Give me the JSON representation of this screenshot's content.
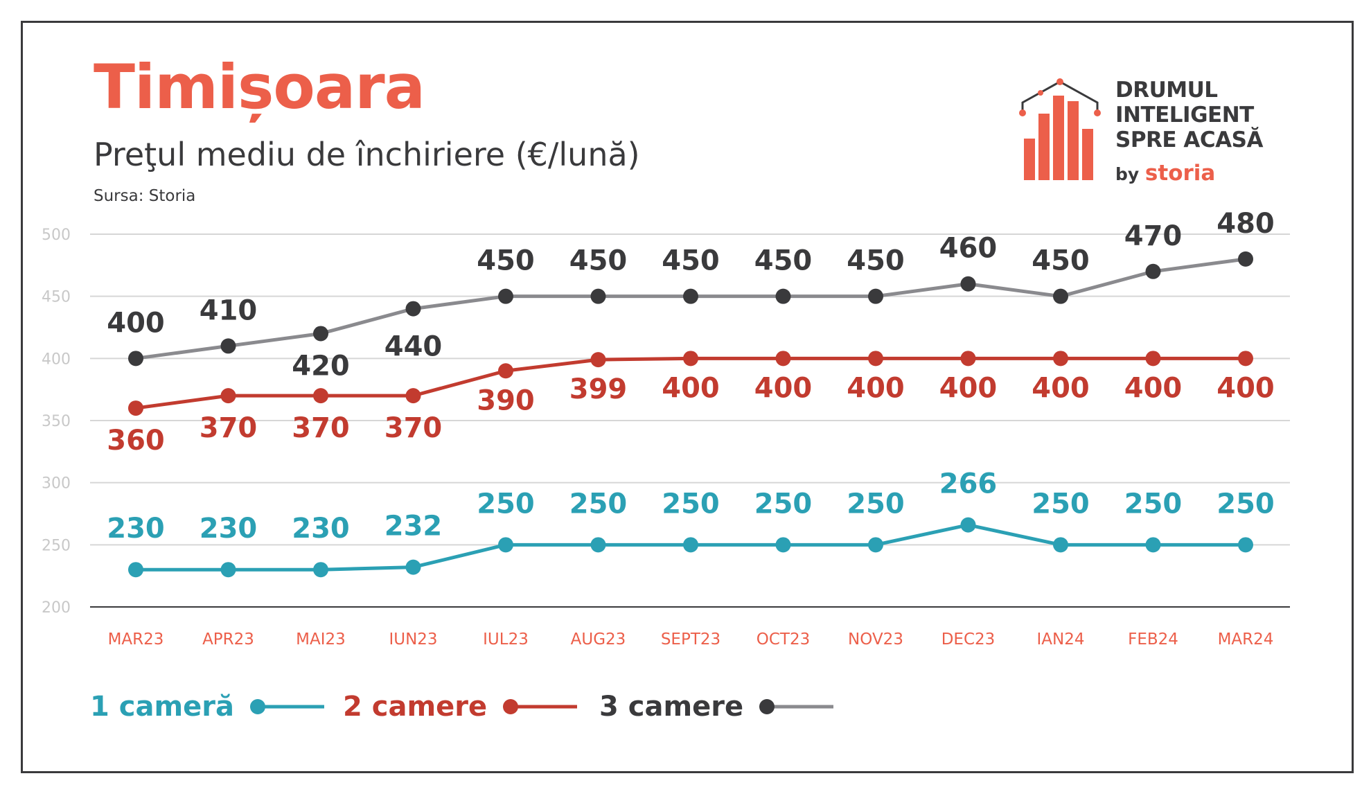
{
  "header": {
    "title": "Timișoara",
    "subtitle": "Preţul mediu de închiriere (€/lună)",
    "source": "Sursa: Storia"
  },
  "logo": {
    "line1": "DRUMUL",
    "line2": "INTELIGENT",
    "line3": "SPRE ACASĂ",
    "by": "by",
    "brand": "storia"
  },
  "colors": {
    "accent": "#ec5f4a",
    "one_room": "#2ba0b4",
    "two_rooms": "#c23b2f",
    "three_rooms_line": "#8a8a8e",
    "three_rooms_marker": "#3a3a3c",
    "grid": "#d6d6d6",
    "axis_tick": "#c8c8c8",
    "category_label": "#ec5f4a"
  },
  "chart_data": {
    "type": "line",
    "title": "Preţul mediu de închiriere (€/lună)",
    "categories": [
      "MAR23",
      "APR23",
      "MAI23",
      "IUN23",
      "IUL23",
      "AUG23",
      "SEPT23",
      "OCT23",
      "NOV23",
      "DEC23",
      "IAN24",
      "FEB24",
      "MAR24"
    ],
    "yticks": [
      200,
      250,
      300,
      350,
      400,
      450,
      500
    ],
    "ylim": [
      200,
      500
    ],
    "grid": true,
    "legend_position": "bottom-left",
    "series": [
      {
        "name": "1 cameră",
        "key": "one_room",
        "values": [
          230,
          230,
          230,
          232,
          250,
          250,
          250,
          250,
          250,
          266,
          250,
          250,
          250
        ],
        "labels": [
          "230",
          "230",
          "230",
          "232",
          "250",
          "250",
          "250",
          "250",
          "250",
          "266",
          "250",
          "250",
          "250"
        ]
      },
      {
        "name": "2 camere",
        "key": "two_rooms",
        "values": [
          360,
          370,
          370,
          370,
          390,
          399,
          400,
          400,
          400,
          400,
          400,
          400,
          400
        ],
        "labels": [
          "360",
          "370",
          "370",
          "370",
          "390",
          "399",
          "400",
          "400",
          "400",
          "400",
          "400",
          "400",
          "400"
        ]
      },
      {
        "name": "3 camere",
        "key": "three_rooms",
        "values": [
          400,
          410,
          420,
          440,
          450,
          450,
          450,
          450,
          450,
          460,
          450,
          470,
          480
        ],
        "labels": [
          "400",
          "410",
          "420",
          "440",
          "450",
          "450",
          "450",
          "450",
          "450",
          "460",
          "450",
          "470",
          "480"
        ]
      }
    ]
  }
}
